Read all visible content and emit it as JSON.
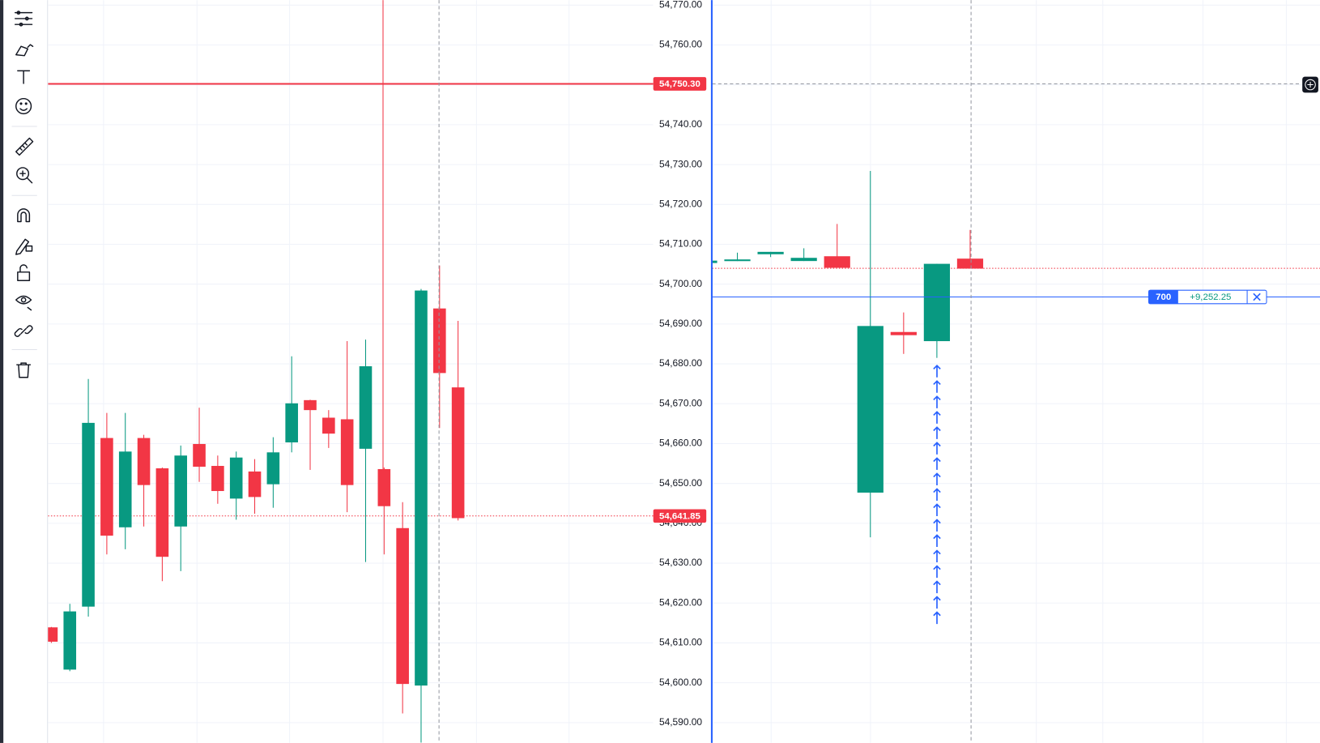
{
  "chart_data": [
    {
      "type": "candlestick",
      "open": [
        54613.9,
        54603.3,
        54619.1,
        54661.4,
        54639.0,
        54661.4,
        54653.8,
        54639.2,
        54659.9,
        54654.4,
        54646.2,
        54653.0,
        54649.8,
        54660.3,
        54670.9,
        54666.5,
        54666.1,
        54658.7,
        54653.6,
        54638.8,
        54599.3,
        54693.9,
        54674.1
      ],
      "high": [
        54614.0,
        54619.8,
        54676.2,
        54667.7,
        54667.7,
        54662.2,
        54654.0,
        54659.5,
        54669.0,
        54657.0,
        54658.0,
        54656.1,
        54661.6,
        54681.9,
        54671.0,
        54668.4,
        54685.7,
        54686.1,
        54654.0,
        54645.3,
        54698.8,
        54704.7,
        54690.8
      ],
      "low": [
        54610.0,
        54602.9,
        54616.6,
        54632.2,
        54633.5,
        54639.2,
        54625.5,
        54628.0,
        54650.4,
        54644.9,
        54640.9,
        54642.4,
        54643.9,
        54657.8,
        54653.4,
        54658.9,
        54642.8,
        54630.3,
        54632.2,
        54592.3,
        54585.0,
        54663.9,
        54640.7
      ],
      "close": [
        54610.3,
        54617.9,
        54665.2,
        54636.9,
        54658.0,
        54649.6,
        54631.6,
        54657.0,
        54654.2,
        54648.1,
        54656.5,
        54646.6,
        54657.8,
        54670.1,
        54668.4,
        54662.5,
        54649.6,
        54679.4,
        54644.3,
        54599.7,
        54698.4,
        54677.7,
        54641.3
      ],
      "up_color": "#089981",
      "down_color": "#f23645",
      "ylim": [
        54584.9,
        54771.27
      ],
      "yticks": [
        {
          "value": 54590,
          "label": "54,590.00"
        },
        {
          "value": 54600,
          "label": "54,600.00"
        },
        {
          "value": 54610,
          "label": "54,610.00"
        },
        {
          "value": 54620,
          "label": "54,620.00"
        },
        {
          "value": 54630,
          "label": "54,630.00"
        },
        {
          "value": 54640,
          "label": "54,640.00"
        },
        {
          "value": 54650,
          "label": "54,650.00"
        },
        {
          "value": 54660,
          "label": "54,660.00"
        },
        {
          "value": 54670,
          "label": "54,670.00"
        },
        {
          "value": 54680,
          "label": "54,680.00"
        },
        {
          "value": 54690,
          "label": "54,690.00"
        },
        {
          "value": 54700,
          "label": "54,700.00"
        },
        {
          "value": 54710,
          "label": "54,710.00"
        },
        {
          "value": 54720,
          "label": "54,720.00"
        },
        {
          "value": 54730,
          "label": "54,730.00"
        },
        {
          "value": 54740,
          "label": "54,740.00"
        },
        {
          "value": 54750,
          "label": "54,750.00"
        },
        {
          "value": 54760,
          "label": "54,760.00"
        },
        {
          "value": 54770,
          "label": "54,770.00"
        }
      ],
      "grid": true,
      "price_lines": [
        {
          "value": 54750.3,
          "label": "54,750.30",
          "color": "#f23645",
          "style": "solid"
        },
        {
          "value": 54641.85,
          "label": "54,641.85",
          "color": "#f23645",
          "style": "dotted"
        }
      ]
    },
    {
      "type": "candlestick",
      "open": [
        54705.3,
        54705.8,
        54707.5,
        54705.8,
        54707.0,
        54647.7,
        54688.0,
        54685.7,
        54706.4
      ],
      "high": [
        54706.0,
        54707.9,
        54708.1,
        54709.0,
        54715.1,
        54728.4,
        54692.9,
        54705.1,
        54713.6
      ],
      "low": [
        54705.0,
        54705.8,
        54706.8,
        54705.8,
        54704.1,
        54636.5,
        54682.5,
        54681.5,
        54703.9
      ],
      "close": [
        54705.9,
        54706.2,
        54708.1,
        54706.6,
        54704.1,
        54689.5,
        54687.2,
        54705.1,
        54703.9
      ],
      "up_color": "#089981",
      "down_color": "#f23645",
      "ylim": [
        54584.9,
        54771.27
      ],
      "grid": true,
      "price_lines": [
        {
          "value": 54750.3,
          "color": "#9598a1",
          "style": "dashed"
        },
        {
          "value": 54704.1,
          "color": "#f23645",
          "style": "dotted"
        }
      ],
      "order": {
        "price": 54696.9,
        "quantity": 700,
        "pnl": {
          "value": 9252.25,
          "label": "+9,252.25"
        },
        "color": "#2962ff"
      }
    }
  ]
}
